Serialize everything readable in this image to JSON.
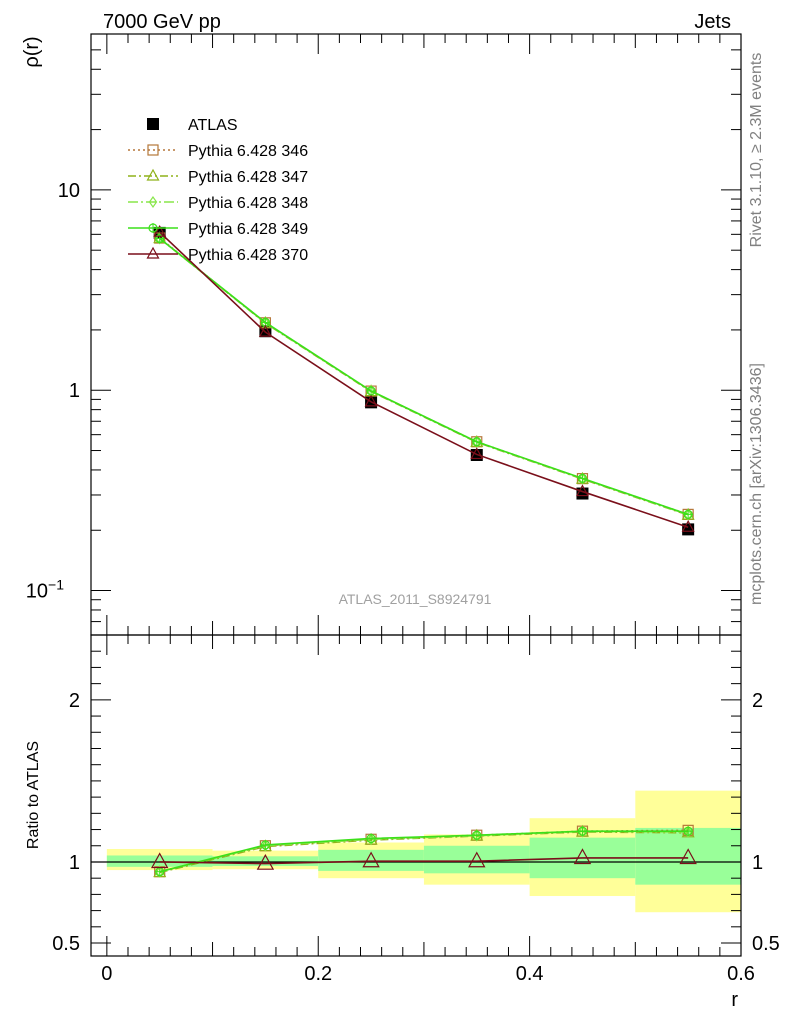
{
  "header": {
    "left": "7000 GeV pp",
    "right": "Jets"
  },
  "side_labels": {
    "rivet": "Rivet 3.1.10, ≥ 2.3M events",
    "mcplots": "mcplots.cern.ch [arXiv:1306.3436]"
  },
  "analysis_tag": "ATLAS_2011_S8924791",
  "chart_data": [
    {
      "type": "line",
      "panel": "main",
      "ylabel": "ρ(r)",
      "yscale": "log",
      "ylim": [
        0.06,
        60
      ],
      "xlim": [
        -0.015,
        0.6
      ],
      "y_tick_labels": [
        {
          "value": 0.1,
          "base": "10",
          "exp": "−1"
        },
        {
          "value": 1,
          "base": "1",
          "exp": ""
        },
        {
          "value": 10,
          "base": "10",
          "exp": ""
        }
      ],
      "x": [
        0.05,
        0.15,
        0.25,
        0.35,
        0.45,
        0.55
      ],
      "series": [
        {
          "name": "ATLAS",
          "kind": "data",
          "color": "#000000",
          "values": [
            6.1,
            1.97,
            0.87,
            0.475,
            0.305,
            0.202
          ]
        },
        {
          "name": "Pythia 6.428 346",
          "kind": "mc",
          "marker": "square",
          "dash": "2,3",
          "color": "#b5773a",
          "values": [
            5.75,
            2.17,
            0.99,
            0.553,
            0.362,
            0.24
          ]
        },
        {
          "name": "Pythia 6.428 347",
          "kind": "mc",
          "marker": "triangle",
          "dash": "8,3,2,3",
          "color": "#8fb21a",
          "values": [
            5.72,
            2.16,
            0.985,
            0.55,
            0.36,
            0.238
          ]
        },
        {
          "name": "Pythia 6.428 348",
          "kind": "mc",
          "marker": "diamond",
          "dash": "10,3,2,3",
          "color": "#88e64a",
          "values": [
            5.72,
            2.17,
            0.99,
            0.552,
            0.362,
            0.239
          ]
        },
        {
          "name": "Pythia 6.428 349",
          "kind": "mc",
          "marker": "circle",
          "dash": "",
          "color": "#3ce01a",
          "values": [
            5.72,
            2.18,
            0.992,
            0.553,
            0.363,
            0.24
          ]
        },
        {
          "name": "Pythia 6.428 370",
          "kind": "mc",
          "marker": "triangle",
          "dash": "",
          "color": "#7a0f1a",
          "values": [
            6.15,
            1.95,
            0.875,
            0.478,
            0.312,
            0.207
          ]
        }
      ]
    },
    {
      "type": "line",
      "panel": "ratio",
      "xlabel": "r",
      "ylabel": "Ratio to ATLAS",
      "ylim": [
        0.42,
        2.4
      ],
      "y_tick_labels": [
        {
          "value": 0.5,
          "label": "0.5"
        },
        {
          "value": 1,
          "label": "1"
        },
        {
          "value": 2,
          "label": "2"
        }
      ],
      "x_tick_labels": [
        {
          "value": 0,
          "label": "0"
        },
        {
          "value": 0.2,
          "label": "0.2"
        },
        {
          "value": 0.4,
          "label": "0.4"
        },
        {
          "value": 0.6,
          "label": "0.6"
        }
      ],
      "uncertainty_bands": [
        {
          "x0": 0.0,
          "x1": 0.1,
          "total": [
            0.95,
            1.08
          ],
          "stat": [
            0.97,
            1.04
          ]
        },
        {
          "x0": 0.1,
          "x1": 0.2,
          "total": [
            0.955,
            1.07
          ],
          "stat": [
            0.975,
            1.035
          ]
        },
        {
          "x0": 0.2,
          "x1": 0.3,
          "total": [
            0.9,
            1.12
          ],
          "stat": [
            0.945,
            1.075
          ]
        },
        {
          "x0": 0.3,
          "x1": 0.4,
          "total": [
            0.86,
            1.17
          ],
          "stat": [
            0.93,
            1.1
          ]
        },
        {
          "x0": 0.4,
          "x1": 0.5,
          "total": [
            0.79,
            1.27
          ],
          "stat": [
            0.9,
            1.15
          ]
        },
        {
          "x0": 0.5,
          "x1": 0.6,
          "total": [
            0.69,
            1.44
          ],
          "stat": [
            0.86,
            1.21
          ]
        }
      ],
      "x": [
        0.05,
        0.15,
        0.25,
        0.35,
        0.45,
        0.55
      ],
      "series": [
        {
          "name": "Pythia 6.428 346",
          "values": [
            0.94,
            1.1,
            1.14,
            1.165,
            1.19,
            1.195
          ]
        },
        {
          "name": "Pythia 6.428 347",
          "values": [
            0.935,
            1.095,
            1.135,
            1.16,
            1.185,
            1.18
          ]
        },
        {
          "name": "Pythia 6.428 348",
          "values": [
            0.94,
            1.1,
            1.14,
            1.162,
            1.188,
            1.185
          ]
        },
        {
          "name": "Pythia 6.428 349",
          "values": [
            0.94,
            1.105,
            1.145,
            1.165,
            1.19,
            1.19
          ]
        },
        {
          "name": "Pythia 6.428 370",
          "values": [
            1.0,
            0.99,
            1.005,
            1.005,
            1.025,
            1.025
          ]
        }
      ]
    }
  ]
}
